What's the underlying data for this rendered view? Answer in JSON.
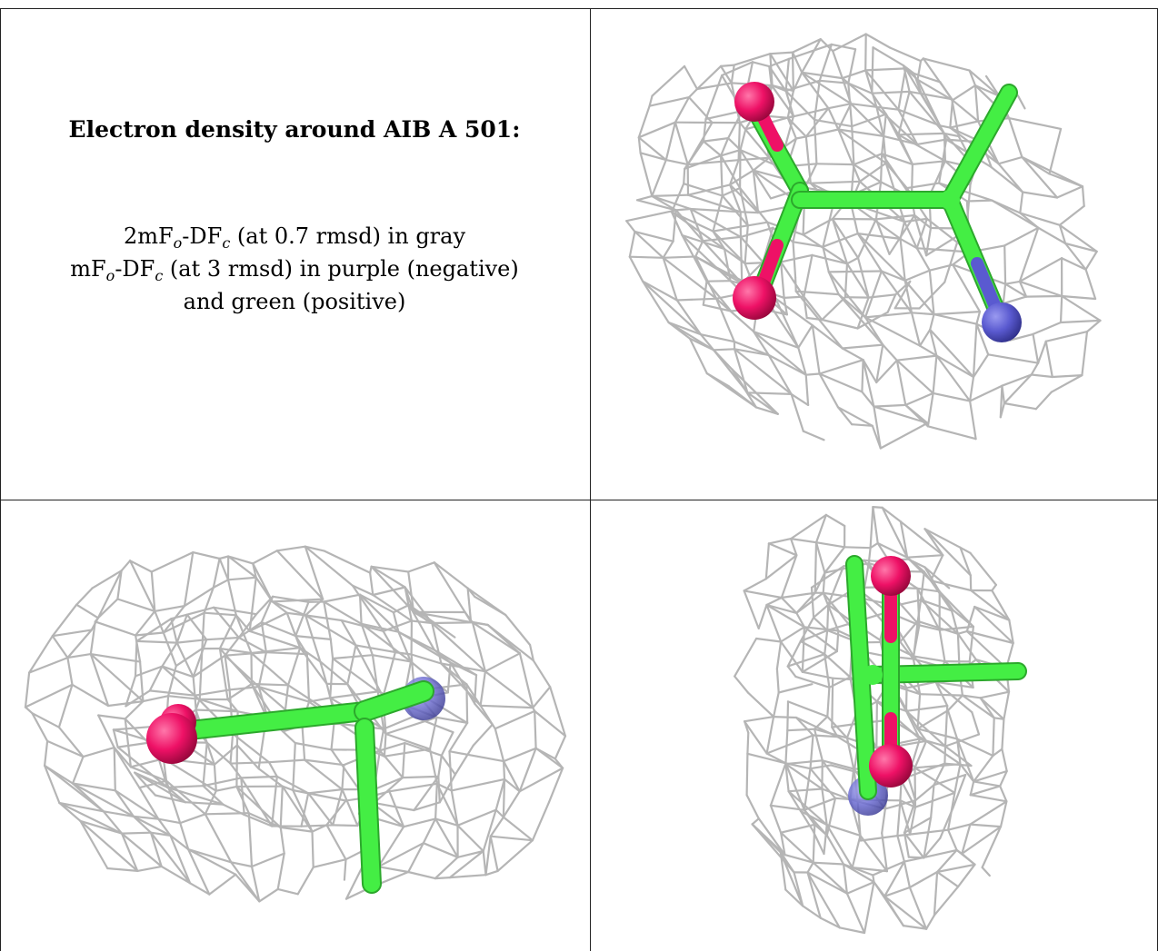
{
  "caption": {
    "title": "Electron density around AIB A 501:",
    "line1": {
      "pre": "2mF",
      "sub1": "o",
      "mid": "-DF",
      "sub2": "c",
      "post": " (at 0.7 rmsd) in gray"
    },
    "line2": {
      "pre": "mF",
      "sub1": "o",
      "mid": "-DF",
      "sub2": "c",
      "post": " (at 3 rmsd) in purple (negative)"
    },
    "line3": "and green (positive)"
  },
  "colors": {
    "mesh": "#b5b5b5",
    "carbon": "#44ee44",
    "oxygen": "#ee1166",
    "nitrogen": "#6060d0",
    "frame": "#222222"
  },
  "views": [
    {
      "name": "view-top-right"
    },
    {
      "name": "view-bottom-left"
    },
    {
      "name": "view-bottom-right"
    }
  ]
}
